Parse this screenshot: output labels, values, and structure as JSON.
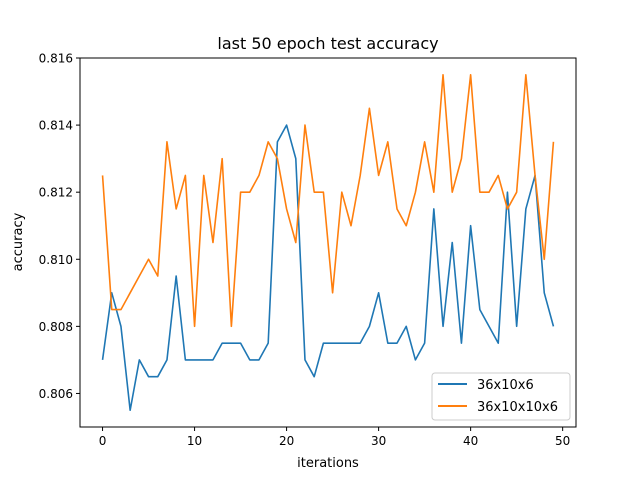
{
  "chart_data": {
    "type": "line",
    "title": "last 50 epoch test accuracy",
    "xlabel": "iterations",
    "ylabel": "accuracy",
    "xlim": [
      -2.45,
      51.45
    ],
    "ylim": [
      0.805,
      0.816
    ],
    "xticks": [
      0,
      10,
      20,
      30,
      40,
      50
    ],
    "xtick_labels": [
      "0",
      "10",
      "20",
      "30",
      "40",
      "50"
    ],
    "yticks": [
      0.806,
      0.808,
      0.81,
      0.812,
      0.814,
      0.816
    ],
    "ytick_labels": [
      "0.806",
      "0.808",
      "0.810",
      "0.812",
      "0.814",
      "0.816"
    ],
    "grid": false,
    "legend_position": "lower-right",
    "x": [
      0,
      1,
      2,
      3,
      4,
      5,
      6,
      7,
      8,
      9,
      10,
      11,
      12,
      13,
      14,
      15,
      16,
      17,
      18,
      19,
      20,
      21,
      22,
      23,
      24,
      25,
      26,
      27,
      28,
      29,
      30,
      31,
      32,
      33,
      34,
      35,
      36,
      37,
      38,
      39,
      40,
      41,
      42,
      43,
      44,
      45,
      46,
      47,
      48,
      49
    ],
    "series": [
      {
        "name": "36x10x6",
        "color": "#1f77b4",
        "values": [
          0.807,
          0.809,
          0.808,
          0.8055,
          0.807,
          0.8065,
          0.8065,
          0.807,
          0.8095,
          0.807,
          0.807,
          0.807,
          0.807,
          0.8075,
          0.8075,
          0.8075,
          0.807,
          0.807,
          0.8075,
          0.8135,
          0.814,
          0.813,
          0.807,
          0.8065,
          0.8075,
          0.8075,
          0.8075,
          0.8075,
          0.8075,
          0.808,
          0.809,
          0.8075,
          0.8075,
          0.808,
          0.807,
          0.8075,
          0.8115,
          0.808,
          0.8105,
          0.8075,
          0.811,
          0.8085,
          0.808,
          0.8075,
          0.812,
          0.808,
          0.8115,
          0.8125,
          0.809,
          0.808
        ]
      },
      {
        "name": "36x10x10x6",
        "color": "#ff7f0e",
        "values": [
          0.8125,
          0.8085,
          0.8085,
          0.809,
          0.8095,
          0.81,
          0.8095,
          0.8135,
          0.8115,
          0.8125,
          0.808,
          0.8125,
          0.8105,
          0.813,
          0.808,
          0.812,
          0.812,
          0.8125,
          0.8135,
          0.813,
          0.8115,
          0.8105,
          0.814,
          0.812,
          0.812,
          0.809,
          0.812,
          0.811,
          0.8125,
          0.8145,
          0.8125,
          0.8135,
          0.8115,
          0.811,
          0.812,
          0.8135,
          0.812,
          0.8155,
          0.812,
          0.813,
          0.8155,
          0.812,
          0.812,
          0.8125,
          0.8115,
          0.812,
          0.8155,
          0.8125,
          0.81,
          0.8135
        ]
      }
    ]
  }
}
